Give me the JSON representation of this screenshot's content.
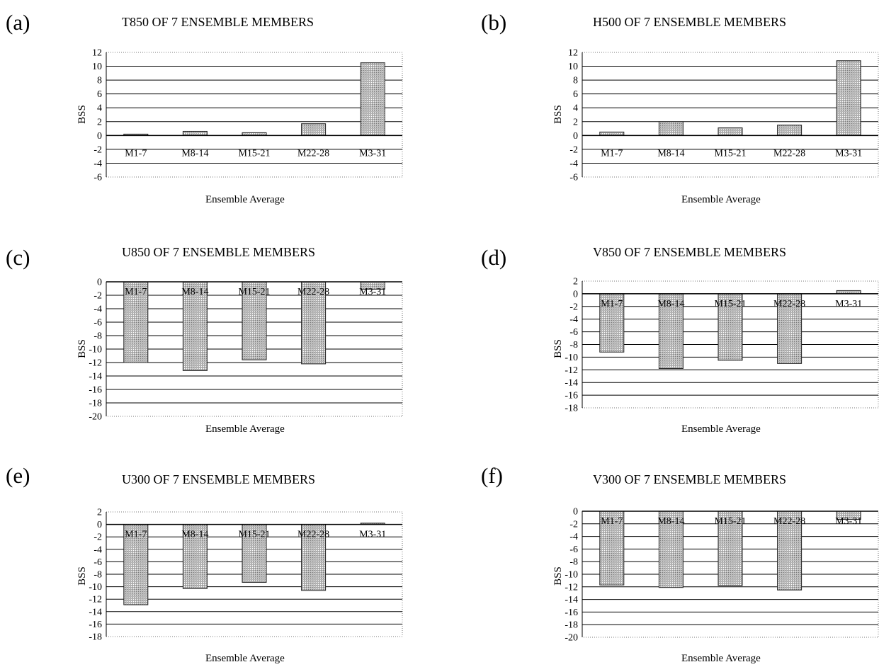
{
  "figure": {
    "panels": [
      {
        "letter": "(a)",
        "title": "T850 OF 7 ENSEMBLE MEMBERS",
        "ylabel": "BSS",
        "xlabel": "Ensemble Average"
      },
      {
        "letter": "(b)",
        "title": "H500 OF 7 ENSEMBLE MEMBERS",
        "ylabel": "BSS",
        "xlabel": "Ensemble Average"
      },
      {
        "letter": "(c)",
        "title": "U850 OF 7 ENSEMBLE MEMBERS",
        "ylabel": "BSS",
        "xlabel": "Ensemble Average"
      },
      {
        "letter": "(d)",
        "title": "V850 OF 7 ENSEMBLE MEMBERS",
        "ylabel": "BSS",
        "xlabel": "Ensemble Average"
      },
      {
        "letter": "(e)",
        "title": "U300 OF 7 ENSEMBLE MEMBERS",
        "ylabel": "BSS",
        "xlabel": "Ensemble Average"
      },
      {
        "letter": "(f)",
        "title": "V300 OF 7 ENSEMBLE MEMBERS",
        "ylabel": "BSS",
        "xlabel": "Ensemble Average"
      }
    ]
  },
  "chart_data": [
    {
      "type": "bar",
      "title": "T850 OF 7 ENSEMBLE MEMBERS",
      "xlabel": "Ensemble Average",
      "ylabel": "BSS",
      "categories": [
        "M1-7",
        "M8-14",
        "M15-21",
        "M22-28",
        "M3-31"
      ],
      "values": [
        0.2,
        0.6,
        0.4,
        1.7,
        10.5
      ],
      "ylim": [
        -6,
        12
      ],
      "ticks": [
        12,
        10,
        8,
        6,
        4,
        2,
        0,
        -2,
        -4,
        -6
      ],
      "grid": true,
      "bar_color": "#b8b8b8"
    },
    {
      "type": "bar",
      "title": "H500 OF 7 ENSEMBLE MEMBERS",
      "xlabel": "Ensemble Average",
      "ylabel": "BSS",
      "categories": [
        "M1-7",
        "M8-14",
        "M15-21",
        "M22-28",
        "M3-31"
      ],
      "values": [
        0.5,
        2.0,
        1.1,
        1.5,
        10.8
      ],
      "ylim": [
        -6,
        12
      ],
      "ticks": [
        12,
        10,
        8,
        6,
        4,
        2,
        0,
        -2,
        -4,
        -6
      ],
      "grid": true,
      "bar_color": "#b8b8b8"
    },
    {
      "type": "bar",
      "title": "U850 OF 7 ENSEMBLE MEMBERS",
      "xlabel": "Ensemble Average",
      "ylabel": "BSS",
      "categories": [
        "M1-7",
        "M8-14",
        "M15-21",
        "M22-28",
        "M3-31"
      ],
      "values": [
        -12.0,
        -13.2,
        -11.6,
        -12.2,
        -1.1
      ],
      "ylim": [
        -20,
        0
      ],
      "ticks": [
        0,
        -2,
        -4,
        -6,
        -8,
        -10,
        -12,
        -14,
        -16,
        -18,
        -20
      ],
      "grid": true,
      "bar_color": "#b8b8b8"
    },
    {
      "type": "bar",
      "title": "V850 OF 7 ENSEMBLE MEMBERS",
      "xlabel": "Ensemble Average",
      "ylabel": "BSS",
      "categories": [
        "M1-7",
        "M8-14",
        "M15-21",
        "M22-28",
        "M3-31"
      ],
      "values": [
        -9.2,
        -11.8,
        -10.5,
        -11.0,
        0.5
      ],
      "ylim": [
        -18,
        2
      ],
      "ticks": [
        2,
        0,
        -2,
        -4,
        -6,
        -8,
        -10,
        -12,
        -14,
        -16,
        -18
      ],
      "grid": true,
      "bar_color": "#b8b8b8"
    },
    {
      "type": "bar",
      "title": "U300 OF 7 ENSEMBLE MEMBERS",
      "xlabel": "Ensemble Average",
      "ylabel": "BSS",
      "categories": [
        "M1-7",
        "M8-14",
        "M15-21",
        "M22-28",
        "M3-31"
      ],
      "values": [
        -12.9,
        -10.3,
        -9.3,
        -10.6,
        0.2
      ],
      "ylim": [
        -18,
        2
      ],
      "ticks": [
        2,
        0,
        -2,
        -4,
        -6,
        -8,
        -10,
        -12,
        -14,
        -16,
        -18
      ],
      "grid": true,
      "bar_color": "#b8b8b8"
    },
    {
      "type": "bar",
      "title": "V300 OF 7 ENSEMBLE MEMBERS",
      "xlabel": "Ensemble Average",
      "ylabel": "BSS",
      "categories": [
        "M1-7",
        "M8-14",
        "M15-21",
        "M22-28",
        "M3-31"
      ],
      "values": [
        -11.7,
        -12.1,
        -11.8,
        -12.5,
        -1.3
      ],
      "ylim": [
        -20,
        0
      ],
      "ticks": [
        0,
        -2,
        -4,
        -6,
        -8,
        -10,
        -12,
        -14,
        -16,
        -18,
        -20
      ],
      "grid": true,
      "bar_color": "#b8b8b8"
    }
  ]
}
